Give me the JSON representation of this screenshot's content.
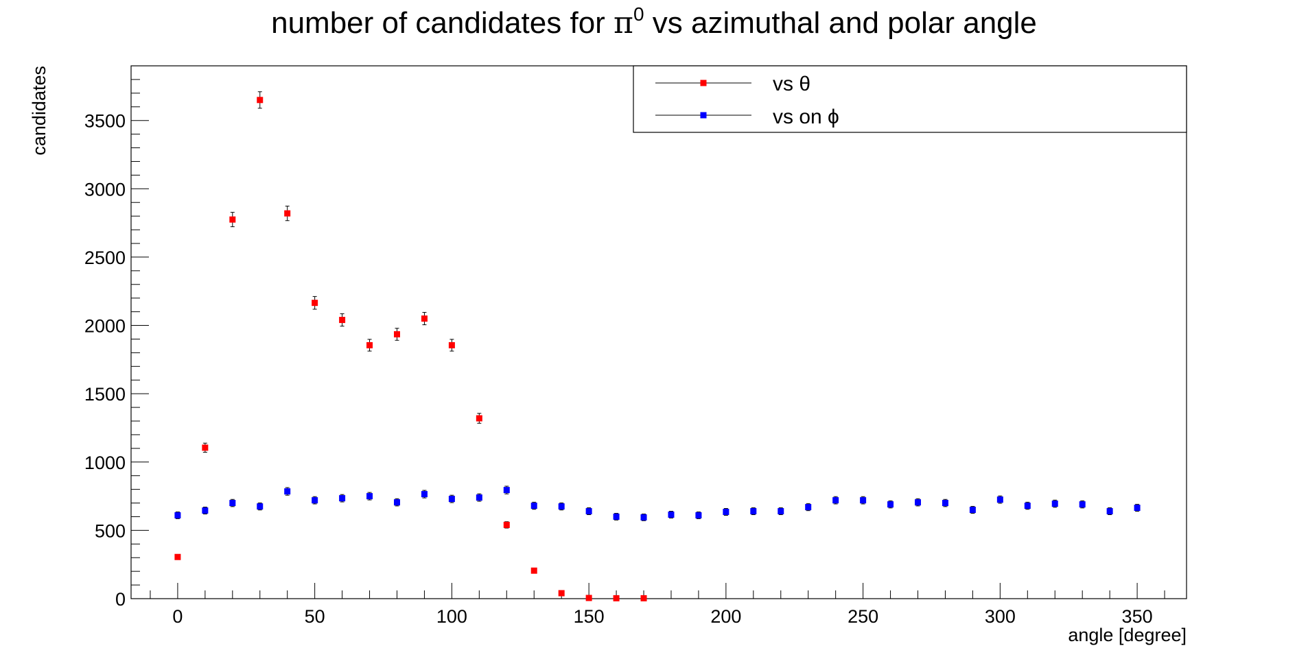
{
  "chart_data": {
    "type": "scatter",
    "title": {
      "prefix": "number of candidates for ",
      "symbol": "π",
      "superscript": "0",
      "suffix": " vs azimuthal and polar angle"
    },
    "xlabel": "angle [degree]",
    "ylabel": "candidates",
    "xlim": [
      -17,
      368
    ],
    "ylim": [
      0,
      3900
    ],
    "xticks": [
      0,
      50,
      100,
      150,
      200,
      250,
      300,
      350
    ],
    "yticks": [
      0,
      500,
      1000,
      1500,
      2000,
      2500,
      3000,
      3500
    ],
    "grid": false,
    "legend_position": "top-right",
    "series": [
      {
        "name": "vs θ",
        "color": "#ff0000",
        "x": [
          0,
          10,
          20,
          30,
          40,
          50,
          60,
          70,
          80,
          90,
          100,
          110,
          120,
          130,
          140,
          150,
          160,
          170
        ],
        "y": [
          305,
          1105,
          2775,
          3650,
          2820,
          2165,
          2040,
          1855,
          1935,
          2050,
          1855,
          1320,
          540,
          205,
          40,
          5,
          3,
          3
        ]
      },
      {
        "name": "vs on ϕ",
        "color": "#0000ff",
        "x": [
          0,
          10,
          20,
          30,
          40,
          50,
          60,
          70,
          80,
          90,
          100,
          110,
          120,
          130,
          140,
          150,
          160,
          170,
          180,
          190,
          200,
          210,
          220,
          230,
          240,
          250,
          260,
          270,
          280,
          290,
          300,
          310,
          320,
          330,
          340,
          350
        ],
        "y": [
          610,
          645,
          700,
          675,
          785,
          720,
          735,
          750,
          705,
          765,
          730,
          740,
          795,
          680,
          675,
          640,
          600,
          595,
          615,
          610,
          635,
          640,
          640,
          670,
          720,
          720,
          690,
          705,
          700,
          650,
          725,
          680,
          695,
          690,
          640,
          665
        ]
      }
    ]
  }
}
